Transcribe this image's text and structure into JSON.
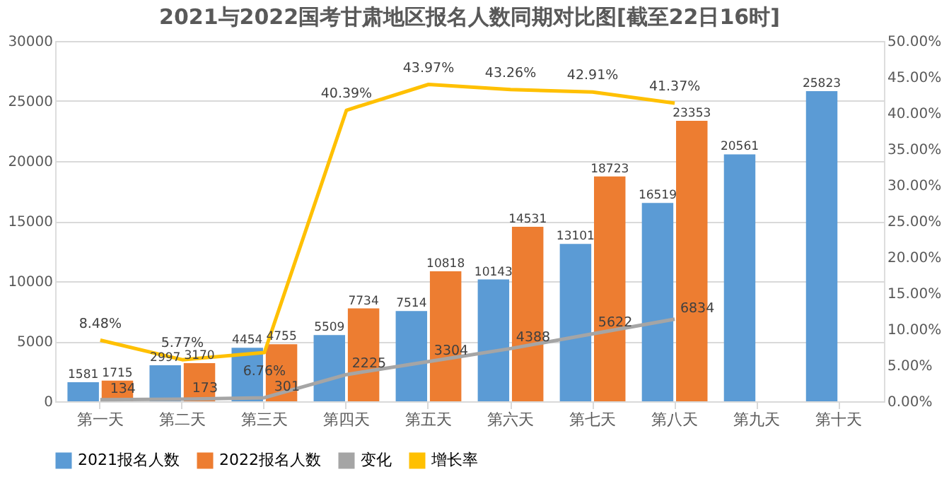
{
  "chart_data": {
    "type": "bar",
    "title": "2021与2022国考甘肃地区报名人数同期对比图[截至22日16时]",
    "categories": [
      "第一天",
      "第二天",
      "第三天",
      "第四天",
      "第五天",
      "第六天",
      "第七天",
      "第八天",
      "第九天",
      "第十天"
    ],
    "series": [
      {
        "name": "2021报名人数",
        "color": "#5b9bd5",
        "values": [
          1581,
          2997,
          4454,
          5509,
          7514,
          10143,
          13101,
          16519,
          20561,
          25823
        ]
      },
      {
        "name": "2022报名人数",
        "color": "#ed7d31",
        "values": [
          1715,
          3170,
          4755,
          7734,
          10818,
          14531,
          18723,
          23353,
          null,
          null
        ]
      },
      {
        "name": "变化",
        "type": "line",
        "color": "#a5a5a5",
        "values": [
          134,
          173,
          301,
          2225,
          3304,
          4388,
          5622,
          6834,
          null,
          null
        ]
      },
      {
        "name": "增长率",
        "type": "line",
        "axis": "y2",
        "color": "#ffc000",
        "values": [
          8.48,
          5.77,
          6.76,
          40.39,
          43.97,
          43.26,
          42.91,
          41.37,
          null,
          null
        ],
        "value_labels": [
          "8.48%",
          "5.77%",
          "6.76%",
          "40.39%",
          "43.97%",
          "43.26%",
          "42.91%",
          "41.37%",
          null,
          null
        ]
      }
    ],
    "ylim": [
      0,
      30000
    ],
    "yticks": [
      0,
      5000,
      10000,
      15000,
      20000,
      25000,
      30000
    ],
    "y2lim": [
      0,
      50
    ],
    "y2ticks": [
      {
        "value": 0,
        "label": "0.00%"
      },
      {
        "value": 5,
        "label": "5.00%"
      },
      {
        "value": 10,
        "label": "10.00%"
      },
      {
        "value": 15,
        "label": "15.00%"
      },
      {
        "value": 20,
        "label": "20.00%"
      },
      {
        "value": 25,
        "label": "25.00%"
      },
      {
        "value": 30,
        "label": "30.00%"
      },
      {
        "value": 35,
        "label": "35.00%"
      },
      {
        "value": 40,
        "label": "40.00%"
      },
      {
        "value": 45,
        "label": "45.00%"
      },
      {
        "value": 50,
        "label": "50.00%"
      }
    ],
    "data_labels": true,
    "grid": "y",
    "legend": "bottom"
  }
}
